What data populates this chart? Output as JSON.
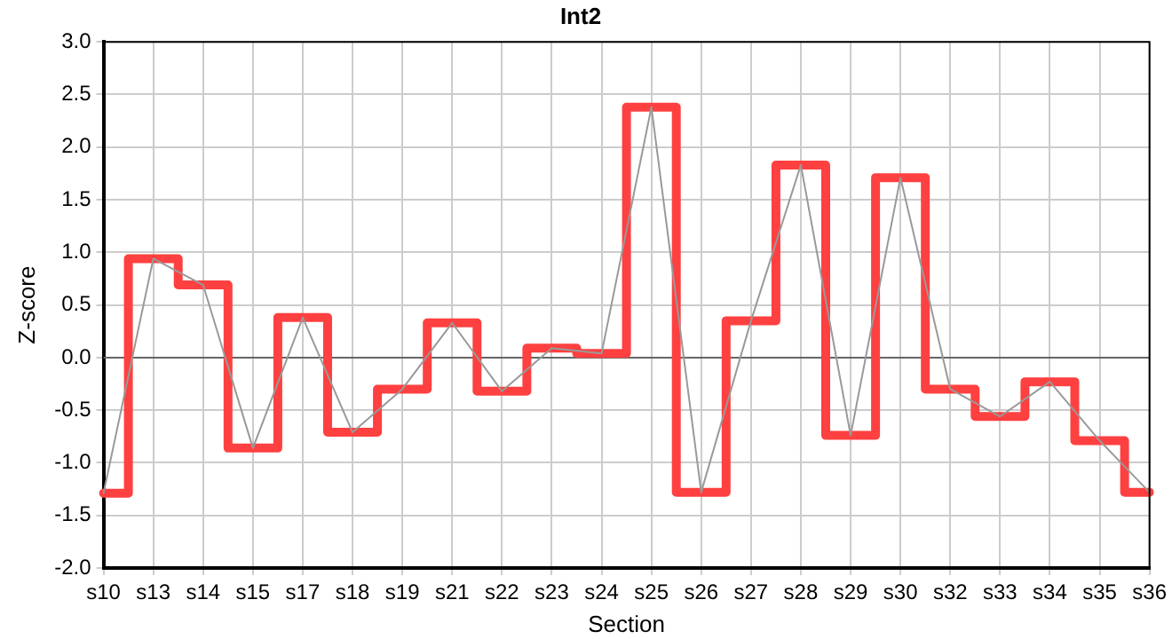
{
  "chart_data": {
    "type": "line",
    "title": "Int2",
    "xlabel": "Section",
    "ylabel": "Z-score",
    "categories": [
      "s10",
      "s13",
      "s14",
      "s15",
      "s17",
      "s18",
      "s19",
      "s21",
      "s22",
      "s23",
      "s24",
      "s25",
      "s26",
      "s27",
      "s28",
      "s29",
      "s30",
      "s32",
      "s33",
      "s34",
      "s35",
      "s36"
    ],
    "series": [
      {
        "type": "line",
        "color": "#999999",
        "values": [
          -1.29,
          0.94,
          0.69,
          -0.86,
          0.38,
          -0.71,
          -0.3,
          0.33,
          -0.32,
          0.09,
          0.04,
          2.38,
          -1.28,
          0.35,
          1.83,
          -0.74,
          1.71,
          -0.3,
          -0.56,
          -0.23,
          -0.79,
          -1.28
        ]
      },
      {
        "type": "step",
        "color": "#ff4040",
        "values": [
          -1.29,
          0.94,
          0.69,
          -0.86,
          0.38,
          -0.71,
          -0.3,
          0.33,
          -0.32,
          0.09,
          0.04,
          2.38,
          -1.28,
          0.35,
          1.83,
          -0.74,
          1.71,
          -0.3,
          -0.56,
          -0.23,
          -0.79,
          -1.28
        ]
      }
    ],
    "ylim": [
      -2,
      3
    ],
    "yticks": [
      {
        "value": -2,
        "label": "-2.0"
      },
      {
        "value": -1.5,
        "label": "-1.5"
      },
      {
        "value": -1,
        "label": "-1.0"
      },
      {
        "value": -0.5,
        "label": "-0.5"
      },
      {
        "value": 0,
        "label": "0.0"
      },
      {
        "value": 0.5,
        "label": "0.5"
      },
      {
        "value": 1,
        "label": "1.0"
      },
      {
        "value": 1.5,
        "label": "1.5"
      },
      {
        "value": 2,
        "label": "2.0"
      },
      {
        "value": 2.5,
        "label": "2.5"
      },
      {
        "value": 3,
        "label": "3.0"
      }
    ],
    "ref_lines": [
      {
        "axis": "y",
        "value": 0,
        "color": "#666666"
      }
    ],
    "grid": true,
    "legend": false,
    "marker": "none"
  }
}
